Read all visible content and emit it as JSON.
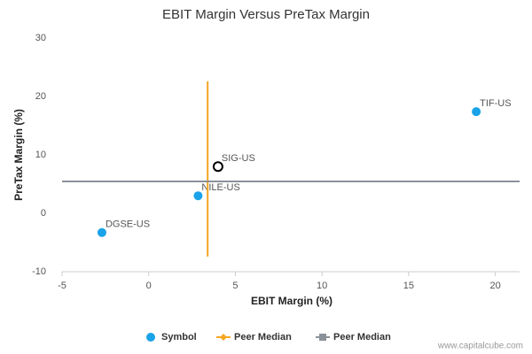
{
  "chart_data": {
    "type": "scatter",
    "title": "EBIT Margin Versus PreTax Margin",
    "x_label": "EBIT Margin (%)",
    "y_label": "PreTax Margin (%)",
    "xlim": [
      -5,
      21.4
    ],
    "xticks": [
      -5,
      0,
      5,
      10,
      15,
      20
    ],
    "ylim": [
      -10,
      30
    ],
    "yticks": [
      -10,
      0,
      10,
      20,
      30
    ],
    "grid": false,
    "legend": "bottom",
    "highlight_index": 1,
    "series": [
      {
        "name": "Symbol",
        "mode": "markers",
        "color": "#1aa3e8",
        "labels": [
          "TIF-US",
          "SIG-US",
          "NILE-US",
          "DGSE-US"
        ],
        "x": [
          18.9,
          4.0,
          2.85,
          -2.7
        ],
        "values": [
          17.4,
          8.0,
          3.0,
          -3.3
        ]
      },
      {
        "name": "Peer Median",
        "mode": "line",
        "color": "#f5a623",
        "x": [
          3.4,
          3.4
        ],
        "values": [
          -7.4,
          22.6
        ]
      },
      {
        "name": "Peer Median",
        "mode": "line",
        "color": "#8a9199",
        "x": [
          -5,
          21.4
        ],
        "values": [
          5.45,
          5.45
        ]
      }
    ],
    "watermark": "www.capitalcube.com"
  }
}
